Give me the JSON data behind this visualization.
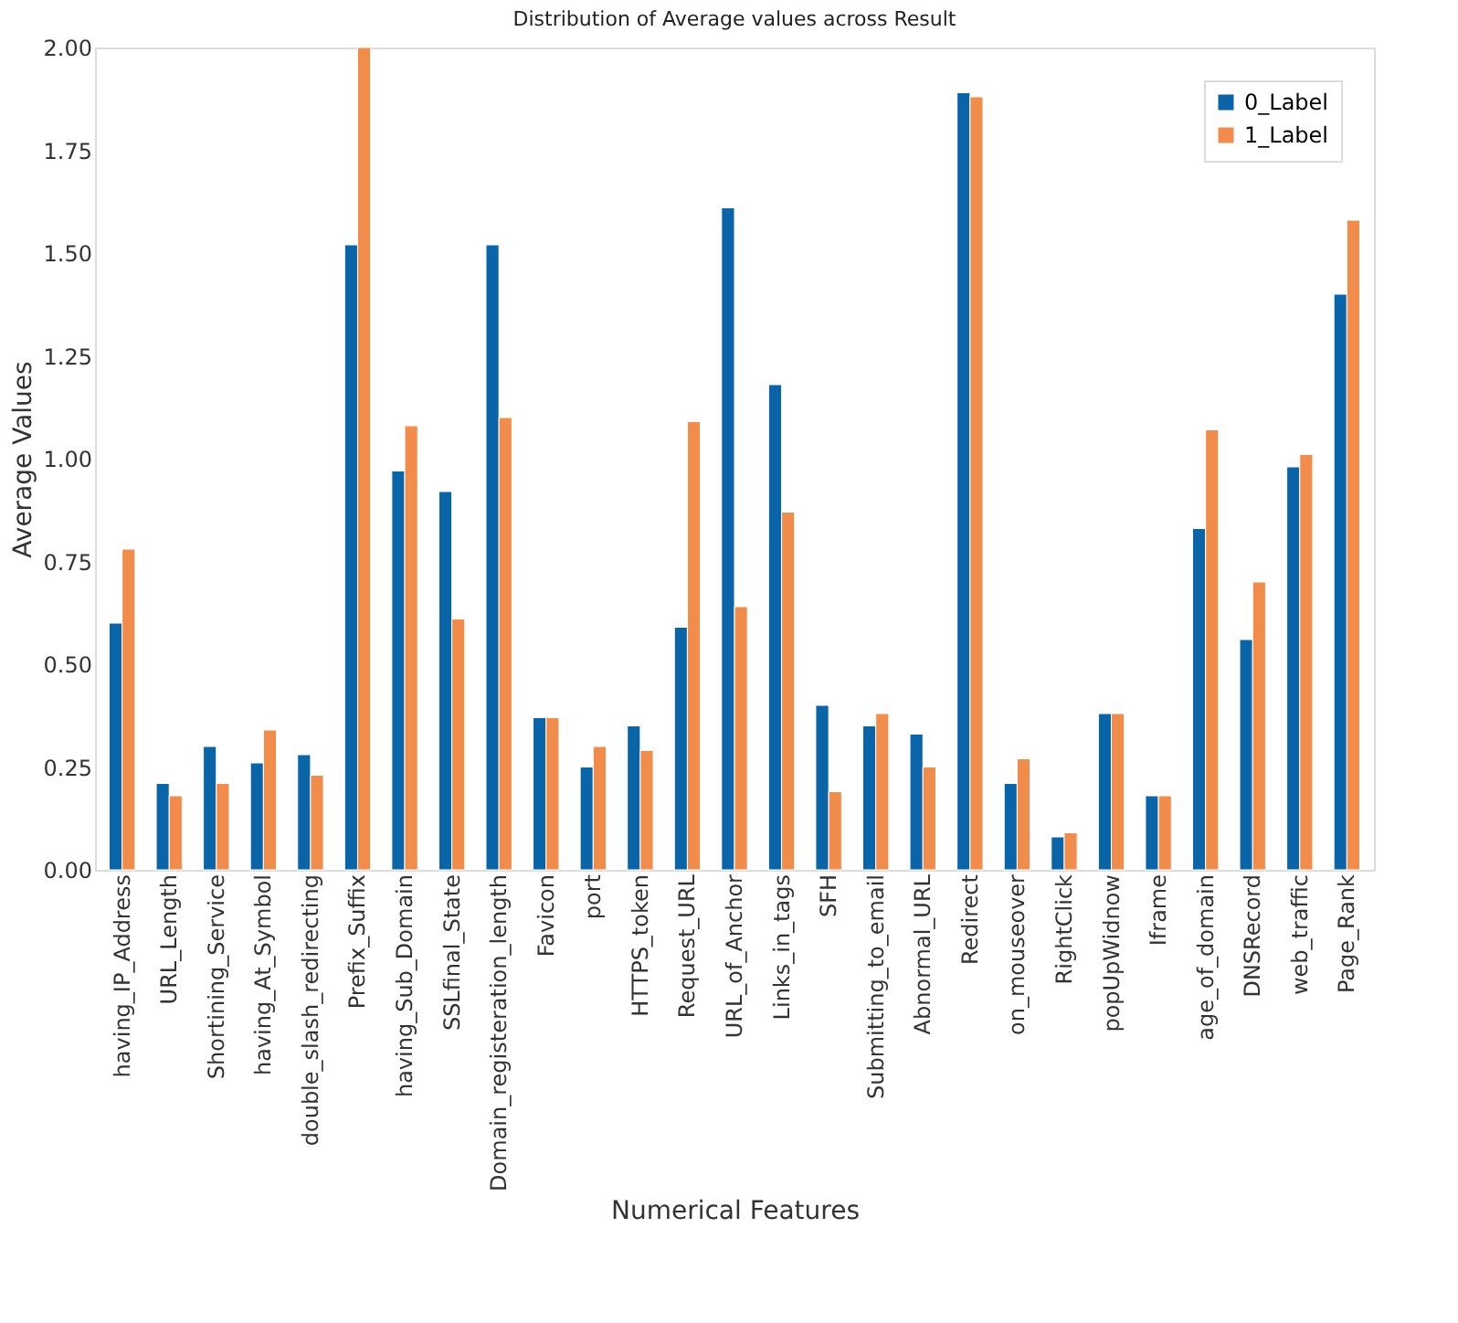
{
  "chart_data": {
    "type": "bar",
    "title": "Distribution of Average values across Result",
    "xlabel": "Numerical Features",
    "ylabel": "Average Values",
    "categories": [
      "having_IP_Address",
      "URL_Length",
      "Shortining_Service",
      "having_At_Symbol",
      "double_slash_redirecting",
      "Prefix_Suffix",
      "having_Sub_Domain",
      "SSLfinal_State",
      "Domain_registeration_length",
      "Favicon",
      "port",
      "HTTPS_token",
      "Request_URL",
      "URL_of_Anchor",
      "Links_in_tags",
      "SFH",
      "Submitting_to_email",
      "Abnormal_URL",
      "Redirect",
      "on_mouseover",
      "RightClick",
      "popUpWidnow",
      "Iframe",
      "age_of_domain",
      "DNSRecord",
      "web_traffic",
      "Page_Rank"
    ],
    "series": [
      {
        "name": "0_Label",
        "color": "#0a64a8",
        "values": [
          0.6,
          0.21,
          0.3,
          0.26,
          0.28,
          1.52,
          0.97,
          0.92,
          1.52,
          0.37,
          0.25,
          0.35,
          0.59,
          1.61,
          1.18,
          0.4,
          0.35,
          0.33,
          1.89,
          0.21,
          0.08,
          0.38,
          0.18,
          0.83,
          0.56,
          0.98,
          1.4
        ]
      },
      {
        "name": "1_Label",
        "color": "#f28c4a",
        "values": [
          0.78,
          0.18,
          0.21,
          0.34,
          0.23,
          2.0,
          1.08,
          0.61,
          1.1,
          0.37,
          0.3,
          0.29,
          1.09,
          0.64,
          0.87,
          0.19,
          0.38,
          0.25,
          1.88,
          0.27,
          0.09,
          0.38,
          0.18,
          1.07,
          0.7,
          1.01,
          1.58
        ]
      }
    ],
    "ylim": [
      0,
      2.0
    ],
    "yticks": [
      {
        "value": 0,
        "label": "0.00"
      },
      {
        "value": 0.25,
        "label": "0.25"
      },
      {
        "value": 0.5,
        "label": "0.50"
      },
      {
        "value": 0.75,
        "label": "0.75"
      },
      {
        "value": 1.0,
        "label": "1.00"
      },
      {
        "value": 1.25,
        "label": "1.25"
      },
      {
        "value": 1.5,
        "label": "1.50"
      },
      {
        "value": 1.75,
        "label": "1.75"
      },
      {
        "value": 2.0,
        "label": "2.00"
      }
    ],
    "grid": false,
    "legend": "top right"
  }
}
